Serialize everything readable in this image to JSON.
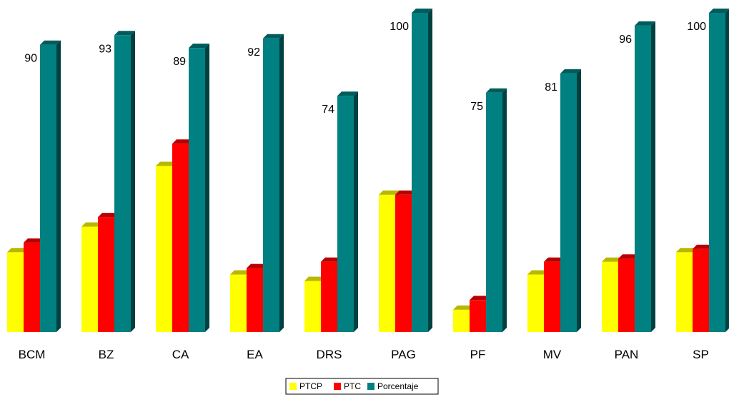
{
  "chart_data": {
    "type": "bar",
    "categories": [
      "BCM",
      "BZ",
      "CA",
      "EA",
      "DRS",
      "PAG",
      "PF",
      "MV",
      "PAN",
      "SP"
    ],
    "series": [
      {
        "name": "PTCP",
        "color": "#ffff00",
        "values": [
          25,
          33,
          52,
          18,
          16,
          43,
          7,
          18,
          22,
          25
        ]
      },
      {
        "name": "PTC",
        "color": "#ff0000",
        "values": [
          28,
          36,
          59,
          20,
          22,
          43,
          10,
          22,
          23,
          26
        ]
      },
      {
        "name": "Porcentaje",
        "color": "#008080",
        "values": [
          90,
          93,
          89,
          92,
          74,
          100,
          75,
          81,
          96,
          100
        ]
      }
    ],
    "data_labels": [
      "90",
      "93",
      "89",
      "92",
      "74",
      "100",
      "75",
      "81",
      "96",
      "100"
    ],
    "ylim": [
      0,
      100
    ],
    "grid": false,
    "legend": {
      "position": "bottom",
      "entries": [
        "PTCP",
        "PTC",
        "Porcentaje"
      ]
    },
    "bar_style": "3d"
  }
}
